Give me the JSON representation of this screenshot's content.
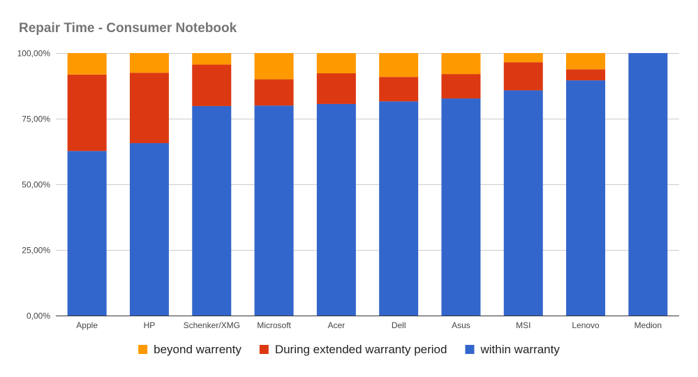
{
  "chart_data": {
    "type": "bar",
    "stacked": true,
    "title": "Repair Time - Consumer Notebook",
    "xlabel": "",
    "ylabel": "",
    "ylim": [
      0,
      100
    ],
    "yticks": [
      0,
      25,
      50,
      75,
      100
    ],
    "ytick_labels": [
      "0,00%",
      "25,00%",
      "50,00%",
      "75,00%",
      "100,00%"
    ],
    "categories": [
      "Apple",
      "HP",
      "Schenker/XMG",
      "Microsoft",
      "Acer",
      "Dell",
      "Asus",
      "MSI",
      "Lenovo",
      "Medion"
    ],
    "series": [
      {
        "name": "within warranty",
        "color": "#3366CC",
        "values": [
          62.7,
          65.7,
          79.8,
          80.0,
          80.6,
          81.6,
          82.7,
          85.8,
          89.6,
          100.0
        ]
      },
      {
        "name": "During extended warranty period",
        "color": "#DC3912",
        "values": [
          29.1,
          26.8,
          15.8,
          10.0,
          11.7,
          9.3,
          9.3,
          10.7,
          4.2,
          0.0
        ]
      },
      {
        "name": "beyond warrenty",
        "color": "#FF9900",
        "values": [
          8.2,
          7.5,
          4.4,
          10.0,
          7.7,
          9.1,
          8.0,
          3.5,
          6.2,
          0.0
        ]
      }
    ],
    "legend_order": [
      "beyond warrenty",
      "During extended warranty period",
      "within warranty"
    ],
    "legend_position": "bottom",
    "grid": true
  }
}
